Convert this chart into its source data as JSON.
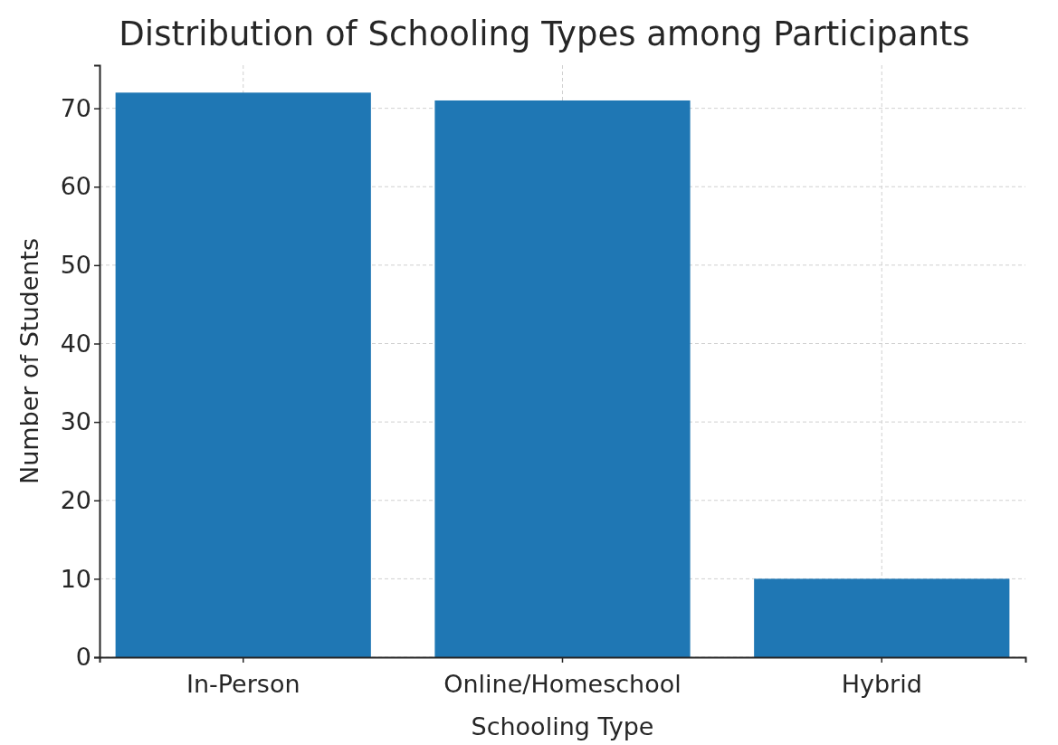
{
  "chart_data": {
    "type": "bar",
    "title": "Distribution of Schooling Types among Participants",
    "xlabel": "Schooling Type",
    "ylabel": "Number of Students",
    "categories": [
      "In-Person",
      "Online/Homeschool",
      "Hybrid"
    ],
    "values": [
      72,
      71,
      10
    ],
    "color": "#1f77b4",
    "ylim": [
      0,
      75.5
    ],
    "yticks": [
      0,
      10,
      20,
      30,
      40,
      50,
      60,
      70
    ],
    "grid": true
  }
}
